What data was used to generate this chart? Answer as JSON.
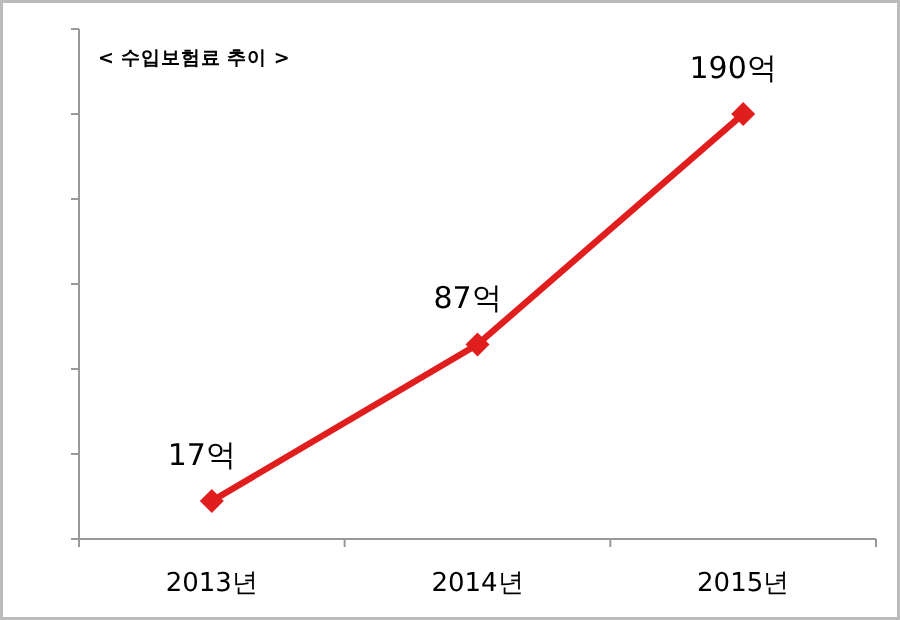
{
  "chart_data": {
    "type": "line",
    "title": "< 수입보험료 추이 >",
    "categories": [
      "2013년",
      "2014년",
      "2015년"
    ],
    "series": [
      {
        "color": "#e01e1e",
        "values": [
          17,
          87,
          190
        ],
        "value_labels": [
          "17억",
          "87억",
          "190억"
        ]
      }
    ],
    "ylim": [
      0,
      228
    ],
    "yticks": [
      {
        "value": 0,
        "label": null
      },
      {
        "value": 38,
        "label": null
      },
      {
        "value": 76,
        "label": null
      },
      {
        "value": 114,
        "label": null
      },
      {
        "value": 152,
        "label": null
      },
      {
        "value": 190,
        "label": null
      },
      {
        "value": 228,
        "label": null
      }
    ],
    "tick_labels": "x",
    "grid": false,
    "marker": "diamond",
    "line_style": "solid"
  }
}
